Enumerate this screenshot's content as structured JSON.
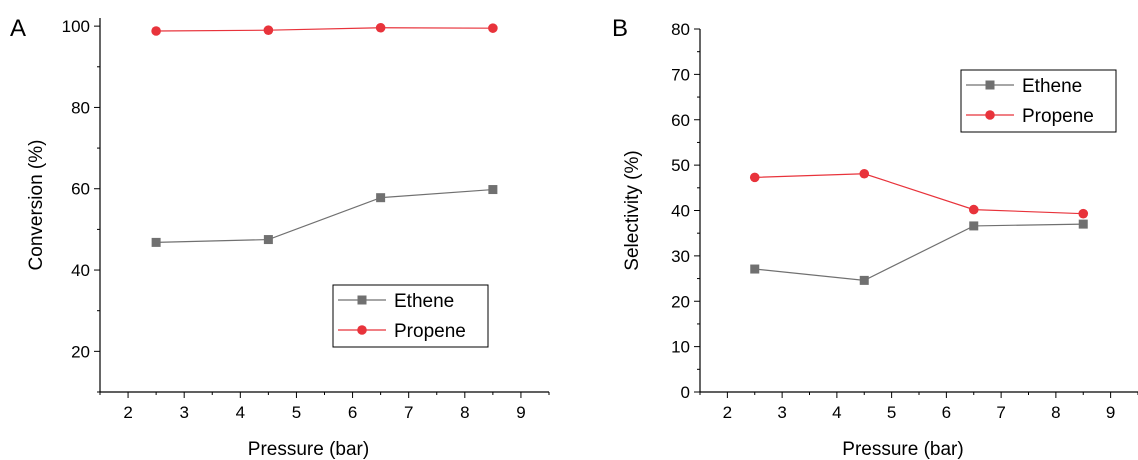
{
  "chart_data": [
    {
      "panel": "A",
      "type": "line",
      "title": "",
      "xlabel": "Pressure (bar)",
      "ylabel": "Conversion (%)",
      "xlim": [
        1.5,
        9.5
      ],
      "ylim": [
        10,
        102
      ],
      "xticks": [
        2,
        3,
        4,
        5,
        6,
        7,
        8,
        9
      ],
      "yticks": [
        20,
        40,
        60,
        80,
        100
      ],
      "x": [
        2.5,
        4.5,
        6.5,
        8.5
      ],
      "series": [
        {
          "name": "Ethene",
          "marker": "square",
          "color": "#707070",
          "values": [
            46.8,
            47.5,
            57.8,
            59.8
          ]
        },
        {
          "name": "Propene",
          "marker": "circle",
          "color": "#e8333b",
          "values": [
            98.8,
            99.0,
            99.6,
            99.5
          ]
        }
      ],
      "legend": "bottom-right",
      "grid": false
    },
    {
      "panel": "B",
      "type": "line",
      "title": "",
      "xlabel": "Pressure (bar)",
      "ylabel": "Selectivity (%)",
      "xlim": [
        1.5,
        9.5
      ],
      "ylim": [
        0,
        80
      ],
      "xticks": [
        2,
        3,
        4,
        5,
        6,
        7,
        8,
        9
      ],
      "yticks": [
        0,
        10,
        20,
        30,
        40,
        50,
        60,
        70,
        80
      ],
      "x": [
        2.5,
        4.5,
        6.5,
        8.5
      ],
      "series": [
        {
          "name": "Ethene",
          "marker": "square",
          "color": "#707070",
          "values": [
            27.1,
            24.6,
            36.6,
            37.0
          ]
        },
        {
          "name": "Propene",
          "marker": "circle",
          "color": "#e8333b",
          "values": [
            47.3,
            48.1,
            40.2,
            39.3
          ]
        }
      ],
      "legend": "top-right",
      "grid": false
    }
  ]
}
